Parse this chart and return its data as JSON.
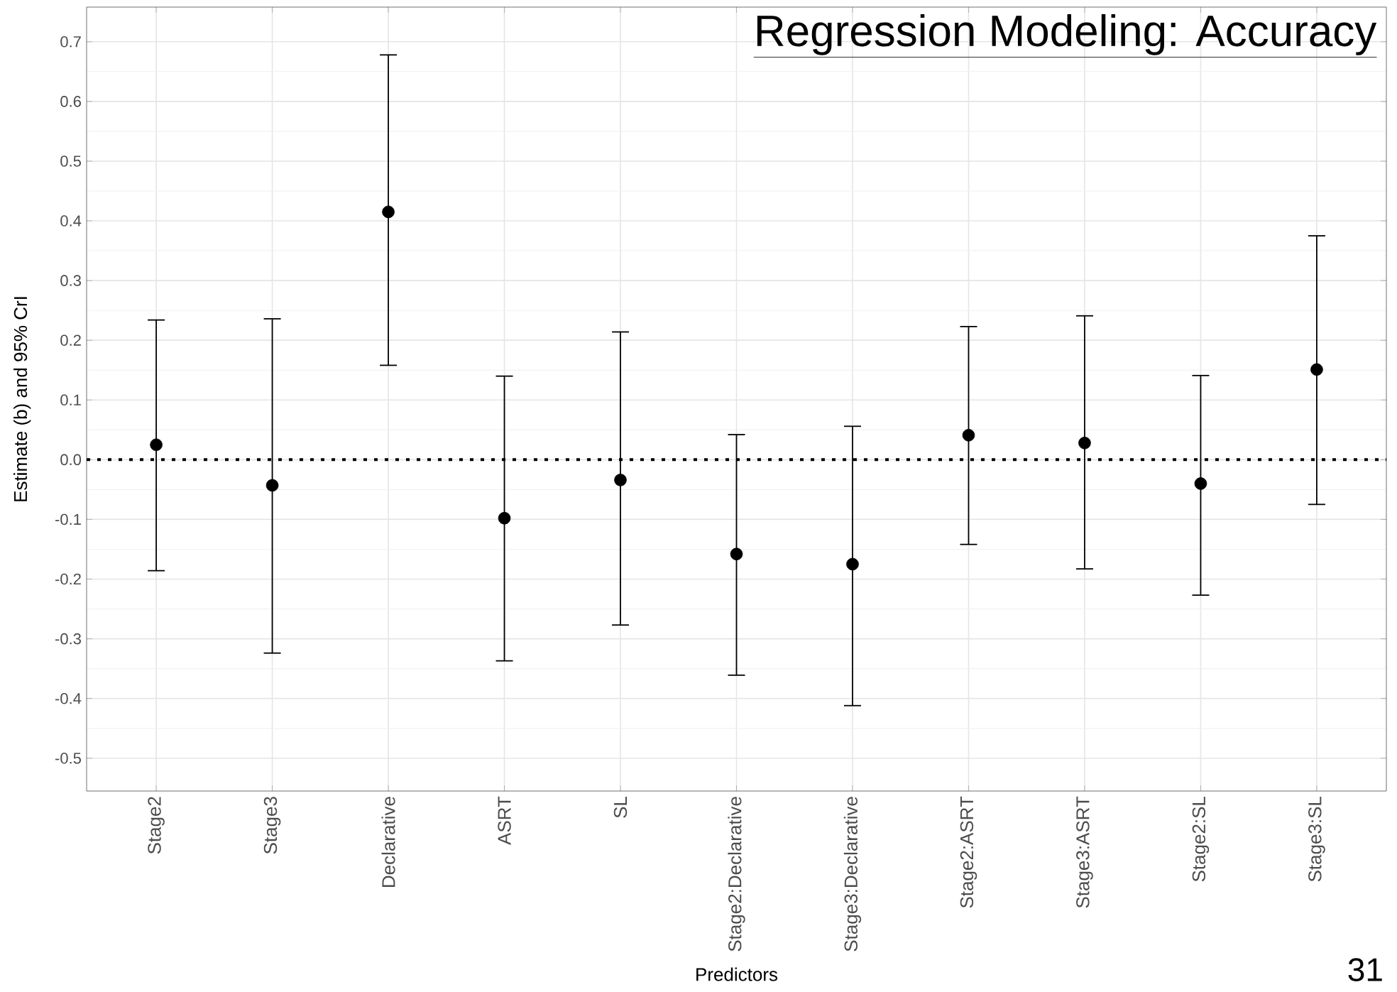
{
  "chart_data": {
    "type": "scatter",
    "title": "Regression Modeling: Accuracy",
    "xlabel": "Predictors",
    "ylabel": "Estimate (b) and 95% CrI",
    "categories": [
      "Stage2",
      "Stage3",
      "Declarative",
      "ASRT",
      "SL",
      "Stage2:Declarative",
      "Stage3:Declarative",
      "Stage2:ASRT",
      "Stage3:ASRT",
      "Stage2:SL",
      "Stage3:SL"
    ],
    "values": [
      0.025,
      -0.043,
      0.415,
      -0.098,
      -0.034,
      -0.158,
      -0.175,
      0.041,
      0.028,
      -0.04,
      0.151
    ],
    "errors": [
      [
        -0.187,
        0.235
      ],
      [
        -0.325,
        0.237
      ],
      [
        0.157,
        0.679
      ],
      [
        -0.338,
        0.141
      ],
      [
        -0.278,
        0.215
      ],
      [
        -0.362,
        0.043
      ],
      [
        -0.413,
        0.057
      ],
      [
        -0.143,
        0.224
      ],
      [
        -0.184,
        0.242
      ],
      [
        -0.228,
        0.142
      ],
      [
        -0.076,
        0.376
      ]
    ],
    "color": "#000000",
    "marker": "circle",
    "grid": true,
    "ylim": [
      -0.555,
      0.758
    ],
    "yticks": [
      {
        "value": -0.5,
        "label": "-0.5"
      },
      {
        "value": -0.4,
        "label": "-0.4"
      },
      {
        "value": -0.3,
        "label": "-0.3"
      },
      {
        "value": -0.2,
        "label": "-0.2"
      },
      {
        "value": -0.1,
        "label": "-0.1"
      },
      {
        "value": 0,
        "label": "0.0"
      },
      {
        "value": 0.1,
        "label": "0.1"
      },
      {
        "value": 0.2,
        "label": "0.2"
      },
      {
        "value": 0.3,
        "label": "0.3"
      },
      {
        "value": 0.4,
        "label": "0.4"
      },
      {
        "value": 0.5,
        "label": "0.5"
      },
      {
        "value": 0.6,
        "label": "0.6"
      },
      {
        "value": 0.7,
        "label": "0.7"
      }
    ],
    "ref_lines": [
      {
        "axis": "y",
        "value": 0,
        "line_style": "dotted",
        "color": "#000000"
      }
    ],
    "annotations": [
      "31"
    ]
  }
}
